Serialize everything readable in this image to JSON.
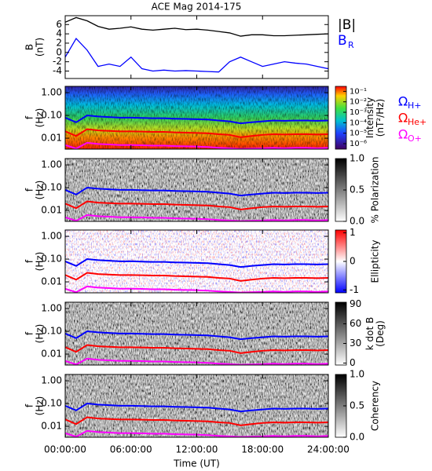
{
  "chart_data": [
    {
      "type": "line",
      "title": "ACE Mag 2014-175",
      "ylabel": "B",
      "ylabel_units": "(nT)",
      "x": [
        0,
        1,
        2,
        3,
        4,
        5,
        6,
        7,
        8,
        9,
        10,
        11,
        12,
        13,
        14,
        15,
        16,
        17,
        18,
        19,
        20,
        21,
        22,
        23,
        24
      ],
      "ylim": [
        -5.6,
        7.9
      ],
      "yticks": [
        -4,
        -2,
        0,
        2,
        4,
        6
      ],
      "series": [
        {
          "name": "|B|",
          "color": "#000000",
          "values": [
            6.5,
            7.5,
            6.8,
            5.6,
            5.0,
            5.2,
            5.5,
            5.0,
            4.8,
            5.0,
            5.2,
            4.9,
            5.0,
            4.8,
            4.5,
            4.2,
            3.5,
            3.8,
            3.8,
            3.6,
            3.6,
            3.7,
            3.8,
            3.9,
            4.0
          ]
        },
        {
          "name": "B",
          "name_sub": "R",
          "color": "#0000ff",
          "values": [
            -1.0,
            3.0,
            0.5,
            -3.0,
            -2.5,
            -3.0,
            -1.0,
            -3.5,
            -4.0,
            -3.8,
            -4.0,
            -3.9,
            -4.0,
            -4.1,
            -4.2,
            -2.0,
            -1.0,
            -2.0,
            -3.0,
            -2.5,
            -2.0,
            -2.3,
            -2.5,
            -3.0,
            -3.5
          ]
        }
      ]
    },
    {
      "type": "spectrogram",
      "ylabel": "f",
      "ylabel_units": "(Hz)",
      "yscale": "log",
      "ylim": [
        0.0033,
        1.9
      ],
      "yticks": [
        {
          "value": 0.01,
          "label": "0.01"
        },
        {
          "value": 0.1,
          "label": "0.10"
        },
        {
          "value": 1,
          "label": "1.00"
        }
      ],
      "colormap": "rainbow",
      "colorbar_label": [
        "Intensity",
        "(nT²/Hz)"
      ],
      "colorbar_scale": "log",
      "colorbar_lim": [
        3e-07,
        0.3
      ],
      "colorbar_ticks": [
        {
          "value": 0.1,
          "label": "10⁻¹"
        },
        {
          "value": 0.01,
          "label": "10⁻²"
        },
        {
          "value": 0.001,
          "label": "10⁻³"
        },
        {
          "value": 0.0001,
          "label": "10⁻⁴"
        },
        {
          "value": 1e-05,
          "label": "10⁻⁵"
        },
        {
          "value": 1e-06,
          "label": "10⁻⁶"
        }
      ],
      "series": [
        {
          "name": "Ω",
          "name_sub": "H+",
          "color": "#0000ff",
          "values": [
            0.08,
            0.05,
            0.1,
            0.09,
            0.085,
            0.08,
            0.08,
            0.078,
            0.075,
            0.075,
            0.072,
            0.07,
            0.068,
            0.066,
            0.06,
            0.055,
            0.045,
            0.05,
            0.055,
            0.06,
            0.058,
            0.06,
            0.06,
            0.058,
            0.06
          ]
        },
        {
          "name": "Ω",
          "name_sub": "He+",
          "color": "#ff0000",
          "values": [
            0.02,
            0.0125,
            0.025,
            0.022,
            0.021,
            0.02,
            0.02,
            0.0195,
            0.019,
            0.019,
            0.018,
            0.0175,
            0.017,
            0.0165,
            0.015,
            0.014,
            0.011,
            0.0125,
            0.014,
            0.015,
            0.0145,
            0.015,
            0.015,
            0.0145,
            0.015
          ]
        },
        {
          "name": "Ω",
          "name_sub": "O+",
          "color": "#ff00ff",
          "values": [
            0.005,
            0.0035,
            0.0063,
            0.0056,
            0.0053,
            0.005,
            0.005,
            0.0049,
            0.0047,
            0.0047,
            0.0045,
            0.0044,
            0.0043,
            0.0041,
            0.0038,
            0.0036,
            0.0034,
            0.0035,
            0.0036,
            0.0038,
            0.0036,
            0.0038,
            0.0038,
            0.0036,
            0.0038
          ]
        }
      ]
    },
    {
      "type": "spectrogram",
      "ylabel": "f",
      "ylabel_units": "(Hz)",
      "colormap": "gray",
      "colorbar_label": [
        "% Polarization"
      ],
      "colorbar_lim": [
        0,
        1
      ],
      "colorbar_ticks": [
        {
          "value": 0,
          "label": "0.0"
        },
        {
          "value": 0.5,
          "label": "0.5"
        },
        {
          "value": 1,
          "label": "1.0"
        }
      ]
    },
    {
      "type": "spectrogram",
      "ylabel": "f",
      "ylabel_units": "(Hz)",
      "colormap": "bwr",
      "colorbar_label": [
        "Ellipticity"
      ],
      "colorbar_lim": [
        -1.1,
        1.1
      ],
      "colorbar_ticks": [
        -1,
        0,
        1
      ]
    },
    {
      "type": "spectrogram",
      "ylabel": "f",
      "ylabel_units": "(Hz)",
      "colormap": "gray",
      "colorbar_label": [
        "k dot B",
        "(Deg)"
      ],
      "colorbar_lim": [
        -3,
        93
      ],
      "colorbar_ticks": [
        0,
        30,
        60,
        90
      ]
    },
    {
      "type": "spectrogram",
      "ylabel": "f",
      "ylabel_units": "(Hz)",
      "colormap": "gray",
      "colorbar_label": [
        "Coherency"
      ],
      "colorbar_lim": [
        0,
        1
      ],
      "colorbar_ticks": [
        {
          "value": 0,
          "label": "0.0"
        },
        {
          "value": 0.5,
          "label": "0.5"
        },
        {
          "value": 1,
          "label": "1.0"
        }
      ],
      "xlabel": "Time (UT)",
      "xlim": [
        0,
        24
      ],
      "xticks": [
        {
          "value": 0,
          "label": "00:00:00"
        },
        {
          "value": 6,
          "label": "06:00:00"
        },
        {
          "value": 12,
          "label": "12:00:00"
        },
        {
          "value": 18,
          "label": "18:00:00"
        },
        {
          "value": 24,
          "label": "24:00:00"
        }
      ]
    }
  ]
}
